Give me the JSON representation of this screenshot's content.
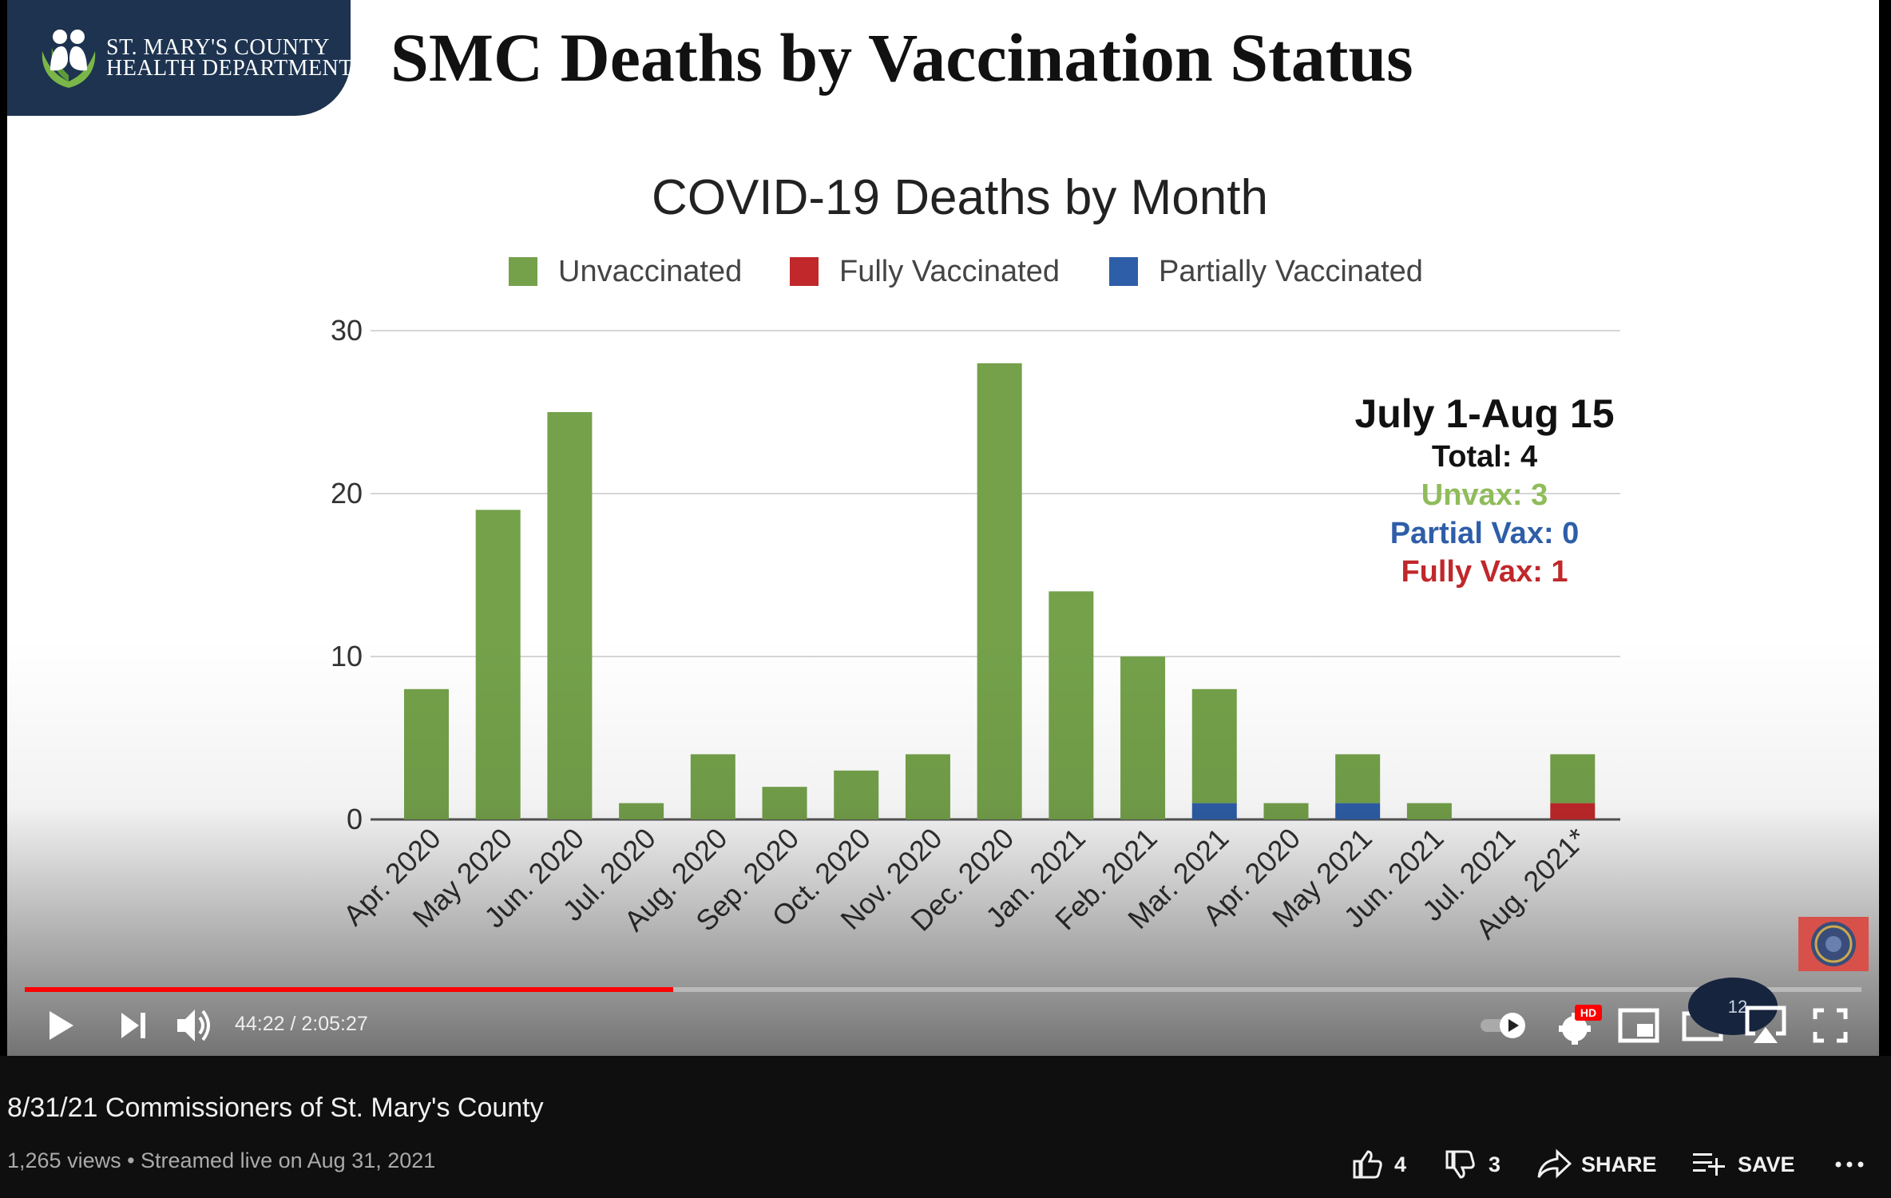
{
  "slide": {
    "logo_line1": "ST. MARY'S COUNTY",
    "logo_line2": "HEALTH DEPARTMENT",
    "title": "SMC Deaths by Vaccination Status"
  },
  "chart_data": {
    "type": "bar",
    "stacked": true,
    "title": "COVID-19 Deaths by Month",
    "xlabel": "",
    "ylabel": "",
    "ylim": [
      0,
      30
    ],
    "yticks": [
      0,
      10,
      20,
      30
    ],
    "grid": true,
    "legend_position": "top",
    "categories": [
      "Apr. 2020",
      "May 2020",
      "Jun. 2020",
      "Jul. 2020",
      "Aug. 2020",
      "Sep. 2020",
      "Oct. 2020",
      "Nov. 2020",
      "Dec. 2020",
      "Jan. 2021",
      "Feb. 2021",
      "Mar. 2021",
      "Apr. 2020",
      "May 2021",
      "Jun. 2021",
      "Jul. 2021",
      "Aug. 2021*"
    ],
    "series": [
      {
        "name": "Fully Vaccinated",
        "color": "#c0282b",
        "values": [
          0,
          0,
          0,
          0,
          0,
          0,
          0,
          0,
          0,
          0,
          0,
          0,
          0,
          0,
          0,
          0,
          1
        ]
      },
      {
        "name": "Partially Vaccinated",
        "color": "#2e5ea8",
        "values": [
          0,
          0,
          0,
          0,
          0,
          0,
          0,
          0,
          0,
          0,
          0,
          1,
          0,
          1,
          0,
          0,
          0
        ]
      },
      {
        "name": "Unvaccinated",
        "color": "#74a14a",
        "values": [
          8,
          19,
          25,
          1,
          4,
          2,
          3,
          4,
          28,
          14,
          10,
          7,
          1,
          3,
          1,
          0,
          3
        ]
      }
    ],
    "legend_order": [
      "Unvaccinated",
      "Fully Vaccinated",
      "Partially Vaccinated"
    ],
    "annotation": {
      "title": "July 1-Aug 15",
      "total": "Total: 4",
      "unvax": "Unvax: 3",
      "partial": "Partial Vax: 0",
      "fully": "Fully Vax: 1"
    }
  },
  "player": {
    "progress": 0.353,
    "time": "44:22 / 2:05:27",
    "hd_badge": "HD",
    "cast_count": "12",
    "icons": [
      "play-icon",
      "next-icon",
      "volume-icon",
      "autoplay-toggle-icon",
      "settings-icon",
      "miniplayer-icon",
      "theater-icon",
      "airplay-icon",
      "fullscreen-icon"
    ]
  },
  "video": {
    "title": "8/31/21 Commissioners of St. Mary's County",
    "meta": "1,265 views • Streamed live on Aug 31, 2021"
  },
  "actions": {
    "likes": "4",
    "dislikes": "3",
    "share_label": "SHARE",
    "save_label": "SAVE"
  },
  "colors": {
    "progress_red": "#ff0000",
    "banner_navy": "#1d3350",
    "unvax_text": "#8fbc5a"
  }
}
